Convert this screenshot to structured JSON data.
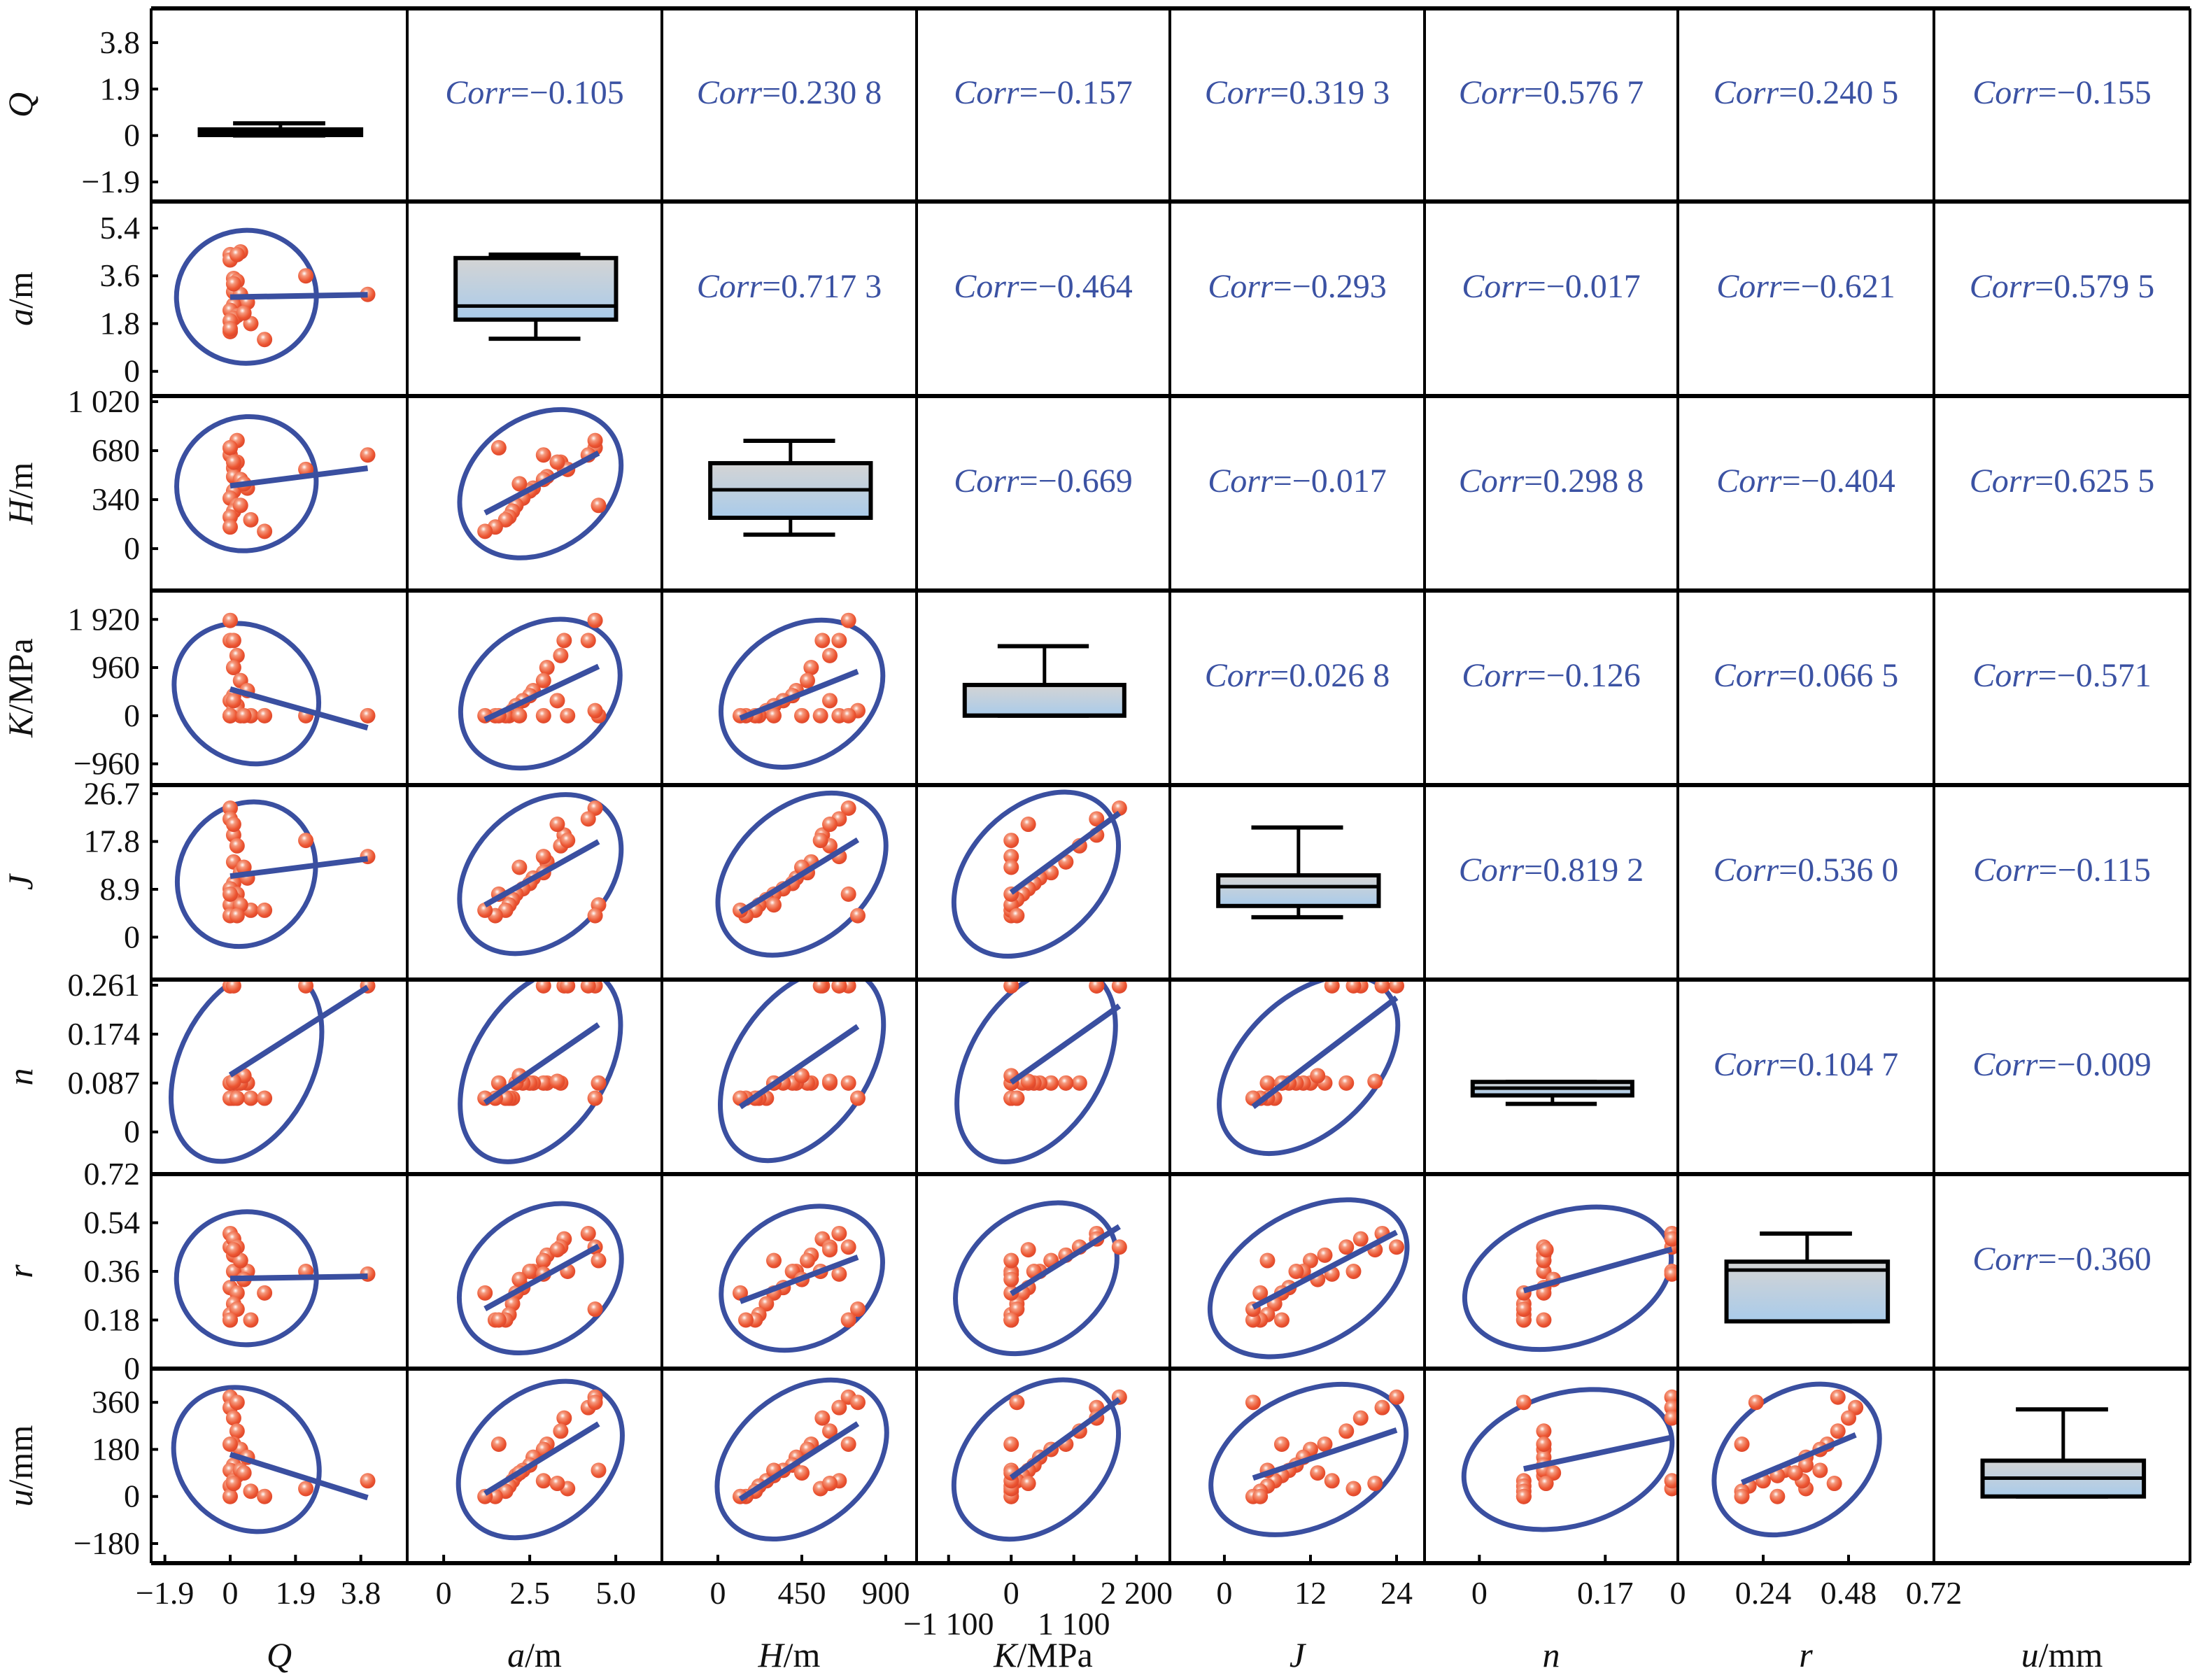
{
  "chart_data": {
    "type": "scatter-matrix",
    "colors": {
      "points": "#ee5a3a",
      "fit": "#3a4fa0",
      "ellipse": "#3a4fa0",
      "corr_text": "#3b52a3",
      "box_top": "#d4d4d4",
      "box_bottom": "#a9cbea"
    },
    "corr_label": "Corr",
    "variables": [
      {
        "symbol": "Q",
        "unit": "",
        "xlim": [
          -2.3,
          5.15
        ],
        "ylim": [
          -2.7,
          5.2
        ],
        "yticks": [
          {
            "v": 3.8,
            "t": "3.8"
          },
          {
            "v": 1.9,
            "t": "1.9"
          },
          {
            "v": 0,
            "t": "0"
          },
          {
            "v": -1.9,
            "t": "−1.9"
          }
        ],
        "xticks": [
          {
            "v": -1.9,
            "t": "−1.9"
          },
          {
            "v": 0,
            "t": "0"
          },
          {
            "v": 1.9,
            "t": "1.9"
          },
          {
            "v": 3.8,
            "t": "3.8"
          }
        ],
        "box": {
          "min": 0,
          "q1": 0.02,
          "median": 0.15,
          "q3": 0.25,
          "max": 0.5
        }
      },
      {
        "symbol": "a",
        "unit": "/m",
        "xlim": [
          -1.06,
          6.34
        ],
        "ylim": [
          -0.93,
          6.4
        ],
        "yticks": [
          {
            "v": 5.4,
            "t": "5.4"
          },
          {
            "v": 3.6,
            "t": "3.6"
          },
          {
            "v": 1.8,
            "t": "1.8"
          },
          {
            "v": 0,
            "t": "0"
          }
        ],
        "xticks": [
          {
            "v": 0,
            "t": "0"
          },
          {
            "v": 2.5,
            "t": "2.5"
          },
          {
            "v": 5.0,
            "t": "5.0"
          }
        ],
        "box": {
          "min": 1.23,
          "q1": 1.95,
          "median": 2.46,
          "q3": 4.27,
          "max": 4.4
        }
      },
      {
        "symbol": "H",
        "unit": "/m",
        "xlim": [
          -300,
          1065
        ],
        "ylim": [
          -291,
          1059
        ],
        "yticks": [
          {
            "v": 1020,
            "t": "1 020"
          },
          {
            "v": 680,
            "t": "680"
          },
          {
            "v": 340,
            "t": "340"
          },
          {
            "v": 0,
            "t": "0"
          }
        ],
        "xticks": [
          {
            "v": 0,
            "t": "0"
          },
          {
            "v": 450,
            "t": "450"
          },
          {
            "v": 900,
            "t": "900"
          }
        ],
        "box": {
          "min": 97,
          "q1": 214,
          "median": 408,
          "q3": 593,
          "max": 748
        }
      },
      {
        "symbol": "K",
        "unit": "/MPa",
        "xlim": [
          -1662,
          2787
        ],
        "ylim": [
          -1384,
          2496
        ],
        "yticks": [
          {
            "v": 1920,
            "t": "1 920"
          },
          {
            "v": 960,
            "t": "960"
          },
          {
            "v": 0,
            "t": "0"
          },
          {
            "v": -960,
            "t": "−960"
          }
        ],
        "xticks": [
          {
            "v": 0,
            "t": "0"
          },
          {
            "v": 2200,
            "t": "2 200"
          }
        ],
        "xticks_lower": [
          {
            "v": -1100,
            "t": "−1 100"
          },
          {
            "v": 1100,
            "t": "1 100"
          }
        ],
        "box": {
          "min": 0,
          "q1": 0,
          "median": 10,
          "q3": 613,
          "max": 1387
        }
      },
      {
        "symbol": "J",
        "unit": "",
        "xlim": [
          -7.6,
          27.9
        ],
        "ylim": [
          -7.9,
          28.3
        ],
        "yticks": [
          {
            "v": 26.7,
            "t": "26.7"
          },
          {
            "v": 17.8,
            "t": "17.8"
          },
          {
            "v": 8.9,
            "t": "8.9"
          },
          {
            "v": 0,
            "t": "0"
          }
        ],
        "xticks": [
          {
            "v": 0,
            "t": "0"
          },
          {
            "v": 12,
            "t": "12"
          },
          {
            "v": 24,
            "t": "24"
          }
        ],
        "box": {
          "min": 3.7,
          "q1": 5.8,
          "median": 9.4,
          "q3": 11.5,
          "max": 20.4
        }
      },
      {
        "symbol": "n",
        "unit": "",
        "xlim": [
          -0.074,
          0.268
        ],
        "ylim": [
          -0.075,
          0.271
        ],
        "yticks": [
          {
            "v": 0.261,
            "t": "0.261"
          },
          {
            "v": 0.174,
            "t": "0.174"
          },
          {
            "v": 0.087,
            "t": "0.087"
          },
          {
            "v": 0,
            "t": "0"
          }
        ],
        "xticks": [
          {
            "v": 0,
            "t": "0"
          },
          {
            "v": 0.17,
            "t": "0.17"
          }
        ],
        "box": {
          "min": 0.05,
          "q1": 0.065,
          "median": 0.078,
          "q3": 0.089,
          "max": 0.089
        }
      },
      {
        "symbol": "r",
        "unit": "",
        "xlim": [
          0,
          0.72
        ],
        "ylim": [
          0,
          0.72
        ],
        "yticks": [
          {
            "v": 0.72,
            "t": "0.72"
          },
          {
            "v": 0.54,
            "t": "0.54"
          },
          {
            "v": 0.36,
            "t": "0.36"
          },
          {
            "v": 0.18,
            "t": "0.18"
          },
          {
            "v": 0,
            "t": "0"
          }
        ],
        "xticks": [
          {
            "v": 0,
            "t": "0"
          },
          {
            "v": 0.24,
            "t": "0.24"
          },
          {
            "v": 0.48,
            "t": "0.48"
          },
          {
            "v": 0.72,
            "t": "0.72"
          }
        ],
        "box": {
          "min": 0.175,
          "q1": 0.175,
          "median": 0.365,
          "q3": 0.396,
          "max": 0.5
        }
      },
      {
        "symbol": "u",
        "unit": "/mm",
        "xlim": [
          -255,
          489
        ],
        "ylim": [
          -255,
          489
        ],
        "yticks": [
          {
            "v": 360,
            "t": "360"
          },
          {
            "v": 180,
            "t": "180"
          },
          {
            "v": 0,
            "t": "0"
          },
          {
            "v": -180,
            "t": "−180"
          }
        ],
        "xticks": [],
        "box": {
          "min": 0,
          "q1": 0,
          "median": 70,
          "q3": 137,
          "max": 333
        }
      }
    ],
    "corr": [
      [
        null,
        "=−0.105",
        "=0.230 8",
        "=−0.157",
        "=0.319 3",
        "=0.576 7",
        "=0.240 5",
        "=−0.155"
      ],
      [
        null,
        null,
        "=0.717 3",
        "=−0.464",
        "=−0.293",
        "=−0.017",
        "=−0.621",
        "=0.579 5"
      ],
      [
        null,
        null,
        null,
        "=−0.669",
        "=−0.017",
        "=0.298 8",
        "=−0.404",
        "=0.625 5"
      ],
      [
        null,
        null,
        null,
        null,
        "=0.026 8",
        "=−0.126",
        "=0.066 5",
        "=−0.571"
      ],
      [
        null,
        null,
        null,
        null,
        null,
        "=0.819 2",
        "=0.536 0",
        "=−0.115"
      ],
      [
        null,
        null,
        null,
        null,
        null,
        null,
        "=0.104 7",
        "=−0.009"
      ],
      [
        null,
        null,
        null,
        null,
        null,
        null,
        null,
        "=−0.360"
      ],
      [
        null,
        null,
        null,
        null,
        null,
        null,
        null,
        null
      ]
    ],
    "observations_columns": [
      "Q",
      "a",
      "H",
      "K",
      "J",
      "n",
      "r",
      "u"
    ],
    "observations": [
      [
        0,
        4.4,
        700,
        1900,
        24,
        0.26,
        0.45,
        380
      ],
      [
        0,
        4.2,
        650,
        1500,
        22,
        0.26,
        0.5,
        340
      ],
      [
        0.1,
        3.5,
        560,
        1500,
        19,
        0.26,
        0.48,
        300
      ],
      [
        0.2,
        3.4,
        600,
        1200,
        17,
        0.087,
        0.45,
        250
      ],
      [
        0.1,
        3.0,
        500,
        960,
        14,
        0.087,
        0.42,
        200
      ],
      [
        0.3,
        2.9,
        480,
        700,
        12,
        0.087,
        0.4,
        180
      ],
      [
        0.5,
        2.6,
        420,
        500,
        11,
        0.087,
        0.36,
        150
      ],
      [
        0.1,
        2.5,
        400,
        400,
        10,
        0.087,
        0.36,
        120
      ],
      [
        0,
        2.3,
        350,
        300,
        9,
        0.087,
        0.3,
        100
      ],
      [
        0.2,
        2.1,
        300,
        200,
        8,
        0.087,
        0.28,
        80
      ],
      [
        0.1,
        2.0,
        260,
        100,
        7,
        0.06,
        0.24,
        60
      ],
      [
        0,
        1.9,
        220,
        0,
        6,
        0.06,
        0.2,
        40
      ],
      [
        0.6,
        1.8,
        200,
        0,
        5,
        0.06,
        0.18,
        20
      ],
      [
        0,
        1.5,
        150,
        0,
        4,
        0.06,
        0.18,
        0
      ],
      [
        1.0,
        1.2,
        120,
        0,
        5,
        0.06,
        0.28,
        0
      ],
      [
        2.2,
        3.6,
        550,
        0,
        18,
        0.26,
        0.36,
        30
      ],
      [
        4.0,
        2.9,
        650,
        0,
        15,
        0.26,
        0.35,
        60
      ],
      [
        0.3,
        4.5,
        300,
        0,
        6,
        0.087,
        0.4,
        100
      ],
      [
        0.2,
        4.4,
        750,
        100,
        4,
        0.06,
        0.22,
        360
      ],
      [
        0,
        1.6,
        700,
        0,
        8,
        0.087,
        0.18,
        200
      ],
      [
        0.4,
        2.2,
        450,
        0,
        13,
        0.1,
        0.33,
        90
      ],
      [
        0.1,
        3.3,
        600,
        300,
        21,
        0.09,
        0.44,
        50
      ]
    ]
  }
}
